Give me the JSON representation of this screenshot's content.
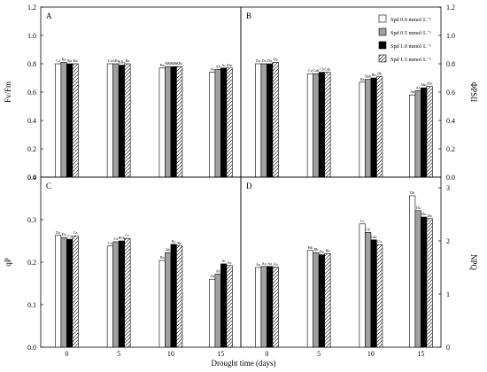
{
  "figure": {
    "xlabel": "Drought time (days)",
    "categories": [
      "0",
      "5",
      "10",
      "15"
    ],
    "legend": {
      "position": "top-right of panel B",
      "entries": [
        {
          "label": "Spd 0.0 mmol·L⁻¹",
          "fill": "white"
        },
        {
          "label": "Spd 0.5 mmol·L⁻¹",
          "fill": "gray"
        },
        {
          "label": "Spd 1.0 mmol·L⁻¹",
          "fill": "black"
        },
        {
          "label": "Spd 1.5 mmol·L⁻¹",
          "fill": "hatched"
        }
      ]
    },
    "colors": {
      "white": "#ffffff",
      "gray": "#a0a0a0",
      "black": "#000000",
      "outline": "#000000"
    }
  },
  "chart_data": [
    {
      "type": "bar",
      "panel": "A",
      "ylabel": "Fv/Fm",
      "ylabel_side": "left",
      "ylim": [
        0,
        1.2
      ],
      "yticks": [
        "0.0",
        "0.2",
        "0.4",
        "0.6",
        "0.8",
        "1.0",
        "1.2"
      ],
      "categories": [
        "0",
        "5",
        "10",
        "15"
      ],
      "series": [
        {
          "name": "Spd 0.0 mmol·L⁻¹",
          "values": [
            0.8,
            0.8,
            0.77,
            0.74
          ],
          "labels": [
            "Ca",
            "Ca",
            "Ba",
            "Aa"
          ]
        },
        {
          "name": "Spd 0.5 mmol·L⁻¹",
          "values": [
            0.81,
            0.8,
            0.78,
            0.76
          ],
          "labels": [
            "Ba",
            "ABa",
            "ABb",
            "Ab"
          ]
        },
        {
          "name": "Spd 1.0 mmol·L⁻¹",
          "values": [
            0.8,
            0.79,
            0.78,
            0.77
          ],
          "labels": [
            "Ba",
            "ABa",
            "ABb",
            "Ac"
          ]
        },
        {
          "name": "Spd 1.5 mmol·L⁻¹",
          "values": [
            0.8,
            0.8,
            0.78,
            0.77
          ],
          "labels": [
            "Ba",
            "Ba",
            "ABc",
            "Abc"
          ]
        }
      ]
    },
    {
      "type": "bar",
      "panel": "B",
      "ylabel": "ΦPSII",
      "ylabel_side": "right",
      "ylim": [
        0,
        1.2
      ],
      "yticks": [
        "0.0",
        "0.2",
        "0.4",
        "0.6",
        "0.8",
        "1.0",
        "1.2"
      ],
      "categories": [
        "0",
        "5",
        "10",
        "15"
      ],
      "series": [
        {
          "name": "Spd 0.0 mmol·L⁻¹",
          "values": [
            0.8,
            0.73,
            0.67,
            0.58
          ],
          "labels": [
            "Da",
            "Ca",
            "Ba",
            "Aa"
          ]
        },
        {
          "name": "Spd 0.5 mmol·L⁻¹",
          "values": [
            0.8,
            0.73,
            0.69,
            0.61
          ],
          "labels": [
            "Da",
            "Cab",
            "Bab",
            "Ab"
          ]
        },
        {
          "name": "Spd 1.0 mmol·L⁻¹",
          "values": [
            0.8,
            0.74,
            0.7,
            0.63
          ],
          "labels": [
            "Da",
            "Cb",
            "Bb",
            "Abc"
          ]
        },
        {
          "name": "Spd 1.5 mmol·L⁻¹",
          "values": [
            0.81,
            0.74,
            0.71,
            0.64
          ],
          "labels": [
            "Da",
            "Cab",
            "Bb",
            "Abc"
          ]
        }
      ]
    },
    {
      "type": "bar",
      "panel": "C",
      "ylabel": "qP",
      "ylabel_side": "left",
      "ylim": [
        0,
        0.4
      ],
      "yticks": [
        "0.0",
        "0.1",
        "0.2",
        "0.3",
        "0.4"
      ],
      "categories": [
        "0",
        "5",
        "10",
        "15"
      ],
      "series": [
        {
          "name": "Spd 0.0 mmol·L⁻¹",
          "values": [
            0.263,
            0.238,
            0.204,
            0.16
          ],
          "labels": [
            "Da",
            "Ca",
            "Ba",
            "Aa"
          ]
        },
        {
          "name": "Spd 0.5 mmol·L⁻¹",
          "values": [
            0.258,
            0.248,
            0.222,
            0.172
          ],
          "labels": [
            "Da",
            "Ca",
            "Bb",
            "Ab"
          ]
        },
        {
          "name": "Spd 1.0 mmol·L⁻¹",
          "values": [
            0.254,
            0.25,
            0.242,
            0.196
          ],
          "labels": [
            "Ca",
            "BCb",
            "Bc",
            "Ac"
          ]
        },
        {
          "name": "Spd 1.5 mmol·L⁻¹",
          "values": [
            0.262,
            0.256,
            0.238,
            0.192
          ],
          "labels": [
            "Ca",
            "Cc",
            "Bc",
            "Ac"
          ]
        }
      ]
    },
    {
      "type": "bar",
      "panel": "D",
      "ylabel": "NPQ",
      "ylabel_side": "right",
      "ylim": [
        0,
        3.2
      ],
      "yticks": [
        "0",
        "1",
        "2",
        "3"
      ],
      "categories": [
        "0",
        "5",
        "10",
        "15"
      ],
      "series": [
        {
          "name": "Spd 0.0 mmol·L⁻¹",
          "values": [
            1.5,
            1.82,
            2.32,
            2.85
          ],
          "labels": [
            "Aa",
            "Bb",
            "Cc",
            "Db"
          ]
        },
        {
          "name": "Spd 0.5 mmol·L⁻¹",
          "values": [
            1.52,
            1.78,
            2.16,
            2.57
          ],
          "labels": [
            "Aa",
            "Bb",
            "Cb",
            "Da"
          ]
        },
        {
          "name": "Spd 1.0 mmol·L⁻¹",
          "values": [
            1.52,
            1.74,
            2.02,
            2.45
          ],
          "labels": [
            "Aa",
            "Ba",
            "Cab",
            "Da"
          ]
        },
        {
          "name": "Spd 1.5 mmol·L⁻¹",
          "values": [
            1.51,
            1.76,
            1.93,
            2.42
          ],
          "labels": [
            "Aa",
            "Bb",
            "Ca",
            "Da"
          ]
        }
      ]
    }
  ]
}
